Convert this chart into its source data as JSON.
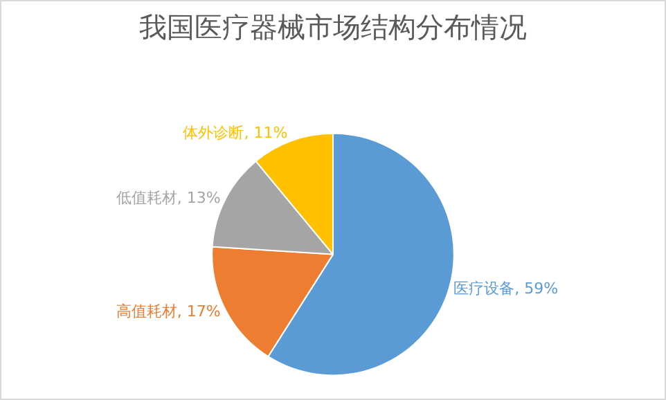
{
  "chart_data": {
    "type": "pie",
    "title": "我国医疗器械市场结构分布情况",
    "categories": [
      "医疗设备",
      "高值耗材",
      "低值耗材",
      "体外诊断"
    ],
    "values": [
      59,
      17,
      13,
      11
    ],
    "value_labels": [
      "59%",
      "17%",
      "13%",
      "11%"
    ],
    "colors": [
      "#5b9bd5",
      "#ed7d31",
      "#a5a5a5",
      "#ffc000"
    ],
    "legend": false
  }
}
